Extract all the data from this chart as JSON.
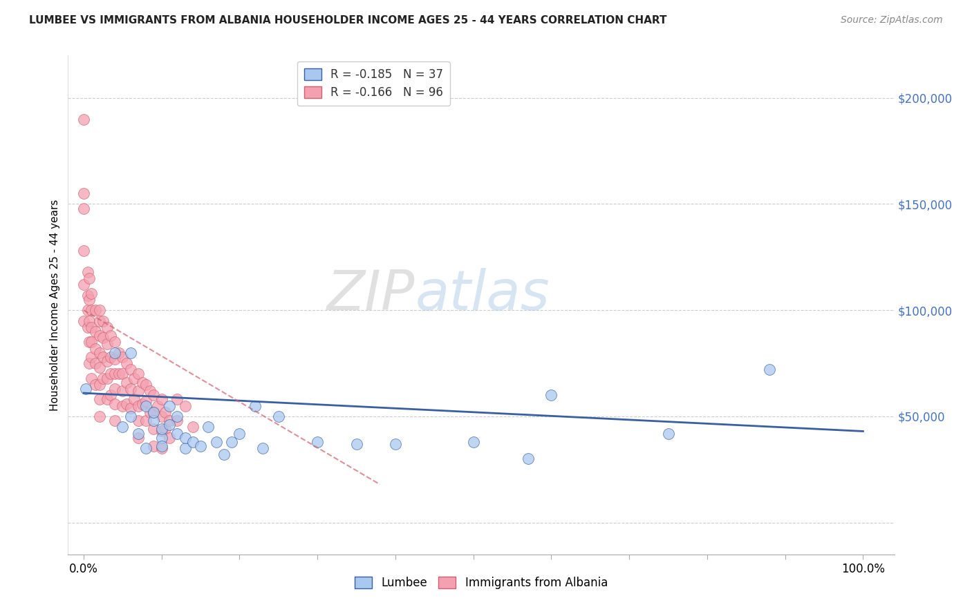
{
  "title": "LUMBEE VS IMMIGRANTS FROM ALBANIA HOUSEHOLDER INCOME AGES 25 - 44 YEARS CORRELATION CHART",
  "source": "Source: ZipAtlas.com",
  "ylabel": "Householder Income Ages 25 - 44 years",
  "legend_lumbee": "R = -0.185   N = 37",
  "legend_albania": "R = -0.166   N = 96",
  "lumbee_color": "#a8c8f0",
  "albania_color": "#f4a0b0",
  "lumbee_line_color": "#3a5fa0",
  "albania_line_color": "#d06070",
  "watermark_zip": "ZIP",
  "watermark_atlas": "atlas",
  "yticks": [
    0,
    50000,
    100000,
    150000,
    200000
  ],
  "ytick_labels": [
    "",
    "$50,000",
    "$100,000",
    "$150,000",
    "$200,000"
  ],
  "ylim": [
    -15000,
    220000
  ],
  "xlim": [
    -0.02,
    1.04
  ],
  "lumbee_x": [
    0.003,
    0.04,
    0.05,
    0.06,
    0.06,
    0.07,
    0.08,
    0.08,
    0.09,
    0.09,
    0.1,
    0.1,
    0.1,
    0.11,
    0.11,
    0.12,
    0.12,
    0.13,
    0.13,
    0.14,
    0.15,
    0.16,
    0.17,
    0.18,
    0.19,
    0.2,
    0.22,
    0.23,
    0.25,
    0.3,
    0.35,
    0.4,
    0.5,
    0.57,
    0.6,
    0.75,
    0.88
  ],
  "lumbee_y": [
    63000,
    80000,
    45000,
    80000,
    50000,
    42000,
    35000,
    55000,
    48000,
    52000,
    40000,
    44000,
    36000,
    46000,
    55000,
    42000,
    50000,
    35000,
    40000,
    38000,
    36000,
    45000,
    38000,
    32000,
    38000,
    42000,
    55000,
    35000,
    50000,
    38000,
    37000,
    37000,
    38000,
    30000,
    60000,
    42000,
    72000
  ],
  "albania_x": [
    0.0,
    0.0,
    0.0,
    0.0,
    0.0,
    0.0,
    0.005,
    0.005,
    0.005,
    0.005,
    0.007,
    0.007,
    0.007,
    0.007,
    0.007,
    0.01,
    0.01,
    0.01,
    0.01,
    0.01,
    0.01,
    0.015,
    0.015,
    0.015,
    0.015,
    0.015,
    0.02,
    0.02,
    0.02,
    0.02,
    0.02,
    0.02,
    0.02,
    0.02,
    0.025,
    0.025,
    0.025,
    0.025,
    0.03,
    0.03,
    0.03,
    0.03,
    0.03,
    0.035,
    0.035,
    0.035,
    0.035,
    0.04,
    0.04,
    0.04,
    0.04,
    0.04,
    0.04,
    0.045,
    0.045,
    0.05,
    0.05,
    0.05,
    0.05,
    0.055,
    0.055,
    0.055,
    0.06,
    0.06,
    0.06,
    0.065,
    0.065,
    0.07,
    0.07,
    0.07,
    0.07,
    0.07,
    0.075,
    0.075,
    0.08,
    0.08,
    0.08,
    0.085,
    0.085,
    0.09,
    0.09,
    0.09,
    0.09,
    0.095,
    0.1,
    0.1,
    0.1,
    0.1,
    0.105,
    0.105,
    0.11,
    0.11,
    0.12,
    0.12,
    0.13,
    0.14
  ],
  "albania_y": [
    190000,
    155000,
    148000,
    128000,
    112000,
    95000,
    118000,
    107000,
    100000,
    92000,
    115000,
    105000,
    95000,
    85000,
    75000,
    108000,
    100000,
    92000,
    85000,
    78000,
    68000,
    100000,
    90000,
    82000,
    75000,
    65000,
    100000,
    95000,
    88000,
    80000,
    73000,
    65000,
    58000,
    50000,
    95000,
    87000,
    78000,
    68000,
    92000,
    84000,
    76000,
    68000,
    58000,
    88000,
    78000,
    70000,
    60000,
    85000,
    77000,
    70000,
    63000,
    56000,
    48000,
    80000,
    70000,
    78000,
    70000,
    62000,
    55000,
    75000,
    66000,
    56000,
    72000,
    63000,
    54000,
    68000,
    58000,
    70000,
    62000,
    55000,
    48000,
    40000,
    66000,
    56000,
    65000,
    57000,
    48000,
    62000,
    52000,
    60000,
    52000,
    44000,
    36000,
    55000,
    58000,
    50000,
    43000,
    35000,
    52000,
    44000,
    48000,
    40000,
    58000,
    48000,
    55000,
    45000
  ],
  "lumbee_trend_x": [
    0.0,
    1.0
  ],
  "lumbee_trend_y": [
    61000,
    43000
  ],
  "albania_trend_x": [
    0.0,
    0.38
  ],
  "albania_trend_y": [
    100000,
    18000
  ],
  "xtick_positions": [
    0.0,
    0.1,
    0.2,
    0.3,
    0.4,
    0.5,
    0.6,
    0.7,
    0.8,
    0.9,
    1.0
  ]
}
